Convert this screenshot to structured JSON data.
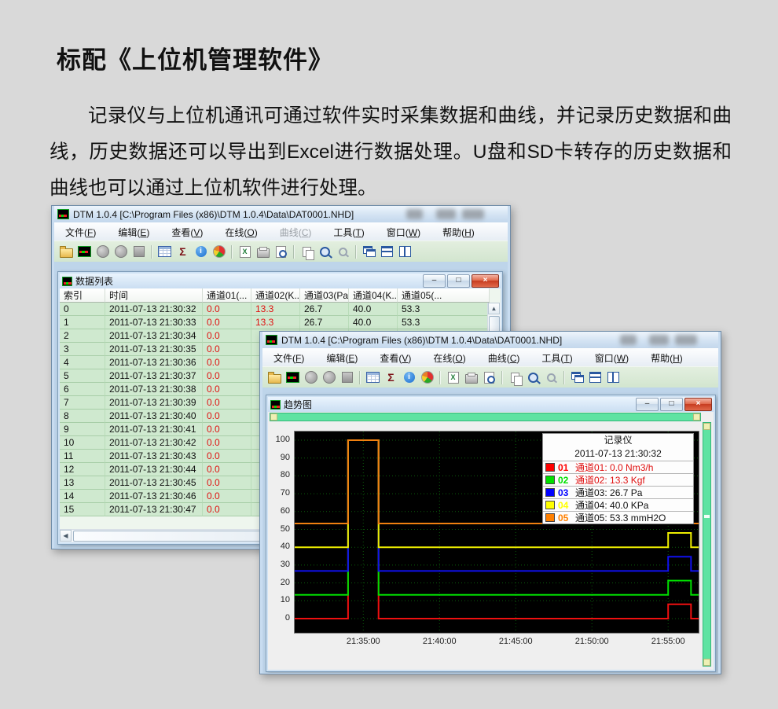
{
  "page": {
    "title": "标配《上位机管理软件》",
    "paragraph": "记录仪与上位机通讯可通过软件实时采集数据和曲线，并记录历史数据和曲线，历史数据还可以导出到Excel进行数据处理。U盘和SD卡转存的历史数据和曲线也可以通过上位机软件进行处理。"
  },
  "menu_items": [
    "文件(F)",
    "编辑(E)",
    "查看(V)",
    "在线(O)",
    "曲线(C)",
    "工具(T)",
    "窗口(W)",
    "帮助(H)"
  ],
  "toolbar": {
    "icons": [
      {
        "name": "open-file-icon"
      },
      {
        "name": "app-logo-icon"
      },
      {
        "name": "record-icon"
      },
      {
        "name": "record2-icon"
      },
      {
        "name": "stop-icon"
      },
      {
        "name": "sep"
      },
      {
        "name": "table-icon"
      },
      {
        "name": "sigma-icon",
        "glyph": "Σ"
      },
      {
        "name": "info-icon",
        "glyph": "i"
      },
      {
        "name": "pie-chart-icon"
      },
      {
        "name": "sep"
      },
      {
        "name": "excel-export-icon",
        "glyph": "X"
      },
      {
        "name": "print-icon"
      },
      {
        "name": "print-preview-icon"
      },
      {
        "name": "sep"
      },
      {
        "name": "copy-icon"
      },
      {
        "name": "zoom-icon"
      },
      {
        "name": "zoom-small-icon"
      },
      {
        "name": "sep"
      },
      {
        "name": "cascade-windows-icon"
      },
      {
        "name": "tile-horizontal-icon"
      },
      {
        "name": "tile-vertical-icon"
      }
    ]
  },
  "window_buttons": [
    {
      "name": "minimize-button",
      "glyph": "–"
    },
    {
      "name": "restore-button",
      "glyph": "□"
    },
    {
      "name": "close-button",
      "glyph": "×"
    }
  ],
  "window1": {
    "title": "DTM 1.0.4 [C:\\Program Files (x86)\\DTM 1.0.4\\Data\\DAT0001.NHD]",
    "disabled_menu": "曲线(C)",
    "child_title": "数据列表"
  },
  "window2": {
    "title": "DTM 1.0.4 [C:\\Program Files (x86)\\DTM 1.0.4\\Data\\DAT0001.NHD]",
    "disabled_menu": "",
    "child_title": "趋势图"
  },
  "table": {
    "columns": [
      "索引",
      "时间",
      "通道01(...",
      "通道02(K...",
      "通道03(Pa)",
      "通道04(K...",
      "通道05(..."
    ],
    "rows": [
      [
        "0",
        "2011-07-13 21:30:32",
        "0.0",
        "13.3",
        "26.7",
        "40.0",
        "53.3"
      ],
      [
        "1",
        "2011-07-13 21:30:33",
        "0.0",
        "13.3",
        "26.7",
        "40.0",
        "53.3"
      ],
      [
        "2",
        "2011-07-13 21:30:34",
        "0.0",
        "",
        "",
        "",
        ""
      ],
      [
        "3",
        "2011-07-13 21:30:35",
        "0.0",
        "",
        "",
        "",
        ""
      ],
      [
        "4",
        "2011-07-13 21:30:36",
        "0.0",
        "",
        "",
        "",
        ""
      ],
      [
        "5",
        "2011-07-13 21:30:37",
        "0.0",
        "",
        "",
        "",
        ""
      ],
      [
        "6",
        "2011-07-13 21:30:38",
        "0.0",
        "",
        "",
        "",
        ""
      ],
      [
        "7",
        "2011-07-13 21:30:39",
        "0.0",
        "",
        "",
        "",
        ""
      ],
      [
        "8",
        "2011-07-13 21:30:40",
        "0.0",
        "",
        "",
        "",
        ""
      ],
      [
        "9",
        "2011-07-13 21:30:41",
        "0.0",
        "",
        "",
        "",
        ""
      ],
      [
        "10",
        "2011-07-13 21:30:42",
        "0.0",
        "",
        "",
        "",
        ""
      ],
      [
        "11",
        "2011-07-13 21:30:43",
        "0.0",
        "",
        "",
        "",
        ""
      ],
      [
        "12",
        "2011-07-13 21:30:44",
        "0.0",
        "",
        "",
        "",
        ""
      ],
      [
        "13",
        "2011-07-13 21:30:45",
        "0.0",
        "",
        "",
        "",
        ""
      ],
      [
        "14",
        "2011-07-13 21:30:46",
        "0.0",
        "",
        "",
        "",
        ""
      ],
      [
        "15",
        "2011-07-13 21:30:47",
        "0.0",
        "",
        "",
        "",
        ""
      ]
    ]
  },
  "chart_data": {
    "type": "line",
    "title": "趋势图",
    "x_start": "21:30:30",
    "x_end": "21:57:00",
    "x_ticks": [
      "21:35:00",
      "21:40:00",
      "21:45:00",
      "21:50:00",
      "21:55:00"
    ],
    "ylim": [
      0,
      100
    ],
    "y_ticks": [
      0,
      10,
      20,
      30,
      40,
      50,
      60,
      70,
      80,
      90,
      100
    ],
    "grid": "dotted dark-green on black",
    "plot_bg": "#000000",
    "grid_color": "#0b5c0b",
    "legend": {
      "position": "top-right",
      "title": "记录仪",
      "timestamp": "2011-07-13 21:30:32",
      "items": [
        {
          "id": "01",
          "color": "#ff0000",
          "label": "通道01: 0.0 Nm3/h",
          "label_red": true
        },
        {
          "id": "02",
          "color": "#00e000",
          "label": "通道02: 13.3 Kgf",
          "label_red": true
        },
        {
          "id": "03",
          "color": "#0000ff",
          "label": "通道03: 26.7 Pa",
          "label_red": false
        },
        {
          "id": "04",
          "color": "#ffff00",
          "label": "通道04: 40.0 KPa",
          "label_red": false
        },
        {
          "id": "05",
          "color": "#ff8000",
          "label": "通道05: 53.3 mmH2O",
          "label_red": false
        }
      ]
    },
    "series": [
      {
        "name": "通道01",
        "unit": "Nm3/h",
        "color": "#ee1010",
        "current": 0.0,
        "points": [
          [
            "21:30:30",
            0
          ],
          [
            "21:34:00",
            0
          ],
          [
            "21:34:00",
            100
          ],
          [
            "21:36:00",
            100
          ],
          [
            "21:36:00",
            0
          ],
          [
            "21:55:00",
            0
          ],
          [
            "21:55:00",
            8
          ],
          [
            "21:56:30",
            8
          ],
          [
            "21:56:30",
            0
          ],
          [
            "21:57:00",
            0
          ]
        ]
      },
      {
        "name": "通道02",
        "unit": "Kgf",
        "color": "#00dd00",
        "current": 13.3,
        "points": [
          [
            "21:30:30",
            13.3
          ],
          [
            "21:34:00",
            13.3
          ],
          [
            "21:34:00",
            100
          ],
          [
            "21:36:00",
            100
          ],
          [
            "21:36:00",
            13.3
          ],
          [
            "21:55:00",
            13.3
          ],
          [
            "21:55:00",
            21.3
          ],
          [
            "21:56:30",
            21.3
          ],
          [
            "21:56:30",
            13.3
          ],
          [
            "21:57:00",
            13.3
          ]
        ]
      },
      {
        "name": "通道03",
        "unit": "Pa",
        "color": "#1010ee",
        "current": 26.7,
        "points": [
          [
            "21:30:30",
            26.7
          ],
          [
            "21:34:00",
            26.7
          ],
          [
            "21:34:00",
            100
          ],
          [
            "21:36:00",
            100
          ],
          [
            "21:36:00",
            26.7
          ],
          [
            "21:55:00",
            26.7
          ],
          [
            "21:55:00",
            34.7
          ],
          [
            "21:56:30",
            34.7
          ],
          [
            "21:56:30",
            26.7
          ],
          [
            "21:57:00",
            26.7
          ]
        ]
      },
      {
        "name": "通道04",
        "unit": "KPa",
        "color": "#eeee00",
        "current": 40.0,
        "points": [
          [
            "21:30:30",
            40
          ],
          [
            "21:34:00",
            40
          ],
          [
            "21:34:00",
            100
          ],
          [
            "21:36:00",
            100
          ],
          [
            "21:36:00",
            40
          ],
          [
            "21:55:00",
            40
          ],
          [
            "21:55:00",
            48
          ],
          [
            "21:56:30",
            48
          ],
          [
            "21:56:30",
            40
          ],
          [
            "21:57:00",
            40
          ]
        ]
      },
      {
        "name": "通道05",
        "unit": "mmH2O",
        "color": "#f08010",
        "current": 53.3,
        "points": [
          [
            "21:30:30",
            53.3
          ],
          [
            "21:34:00",
            53.3
          ],
          [
            "21:34:00",
            100
          ],
          [
            "21:36:00",
            100
          ],
          [
            "21:36:00",
            53.3
          ],
          [
            "21:55:00",
            53.3
          ],
          [
            "21:55:00",
            61.3
          ],
          [
            "21:56:30",
            61.3
          ],
          [
            "21:56:30",
            53.3
          ],
          [
            "21:57:00",
            53.3
          ]
        ]
      }
    ]
  }
}
